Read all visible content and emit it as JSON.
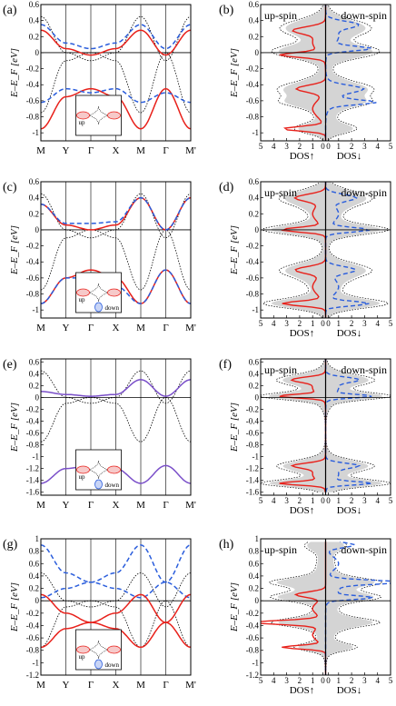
{
  "colors": {
    "up": "#e8211b",
    "down": "#2a5ddc",
    "overlap": "#7a4fc9",
    "reference": "#000000",
    "fill": "#d4d4d4",
    "inset_fill": "#f6c9c9",
    "inset_fill_down": "#c9d5f6"
  },
  "chart_data": [
    {
      "id": "a",
      "type": "line",
      "panel_label": "(a)",
      "ylabel": "E–E_F [eV]",
      "xlabel": "",
      "x_ticks": [
        "M",
        "Y",
        "Γ",
        "X",
        "M",
        "Γ",
        "M'"
      ],
      "ylim": [
        -1.1,
        0.6
      ],
      "y_ticks": [
        "0.6",
        "0.4",
        "0.2",
        "0",
        "-0.2",
        "-0.4",
        "-0.6",
        "-0.8",
        "-1"
      ],
      "inset_labels": [
        "up"
      ],
      "series": [
        {
          "spin": "up",
          "points": [
            [
              0,
              0.28
            ],
            [
              1,
              0.05
            ],
            [
              2,
              -0.03
            ],
            [
              3,
              0.05
            ],
            [
              4,
              0.28
            ],
            [
              5,
              -0.03
            ],
            [
              6,
              0.28
            ]
          ]
        },
        {
          "spin": "down",
          "points": [
            [
              0,
              0.35
            ],
            [
              1,
              0.12
            ],
            [
              2,
              0.05
            ],
            [
              3,
              0.12
            ],
            [
              4,
              0.35
            ],
            [
              5,
              0.05
            ],
            [
              6,
              0.35
            ]
          ]
        },
        {
          "spin": "up",
          "points": [
            [
              0,
              -0.95
            ],
            [
              1,
              -0.55
            ],
            [
              2,
              -0.45
            ],
            [
              3,
              -0.55
            ],
            [
              4,
              -0.95
            ],
            [
              5,
              -0.45
            ],
            [
              6,
              -0.95
            ]
          ]
        },
        {
          "spin": "down",
          "points": [
            [
              0,
              -0.62
            ],
            [
              1,
              -0.45
            ],
            [
              2,
              -0.5
            ],
            [
              3,
              -0.45
            ],
            [
              4,
              -0.62
            ],
            [
              5,
              -0.5
            ],
            [
              6,
              -0.62
            ]
          ]
        }
      ]
    },
    {
      "id": "b",
      "type": "area",
      "panel_label": "(b)",
      "ylabel": "E–E_F [eV]",
      "xlabel_left": "DOS↑",
      "xlabel_right": "DOS↓",
      "x_ticks": [
        "5",
        "4",
        "3",
        "2",
        "1",
        "0",
        "0",
        "1",
        "2",
        "3",
        "4",
        "5"
      ],
      "ylim": [
        -1.1,
        0.6
      ],
      "y_ticks": [
        "0.6",
        "0.4",
        "0.2",
        "0",
        "-0.2",
        "-0.4",
        "-0.6",
        "-0.8",
        "-1"
      ],
      "left_label": "up-spin",
      "right_label": "down-spin"
    },
    {
      "id": "c",
      "type": "line",
      "panel_label": "(c)",
      "ylabel": "E–E_F [eV]",
      "xlabel": "",
      "x_ticks": [
        "M",
        "Y",
        "Γ",
        "X",
        "M",
        "Γ",
        "M'"
      ],
      "ylim": [
        -1.1,
        0.6
      ],
      "y_ticks": [
        "0.6",
        "0.4",
        "0.2",
        "0",
        "-0.2",
        "-0.4",
        "-0.6",
        "-0.8",
        "-1"
      ],
      "inset_labels": [
        "up",
        "down"
      ],
      "series": [
        {
          "spin": "up",
          "points": [
            [
              0,
              0.32
            ],
            [
              1,
              0.06
            ],
            [
              2,
              0.0
            ],
            [
              3,
              0.06
            ],
            [
              4,
              0.4
            ],
            [
              5,
              0.0
            ],
            [
              6,
              0.4
            ]
          ]
        },
        {
          "spin": "down",
          "points": [
            [
              0,
              0.32
            ],
            [
              1,
              0.08
            ],
            [
              2,
              0.08
            ],
            [
              3,
              0.1
            ],
            [
              4,
              0.4
            ],
            [
              5,
              0.0
            ],
            [
              6,
              0.4
            ]
          ]
        },
        {
          "spin": "up",
          "points": [
            [
              0,
              -0.92
            ],
            [
              1,
              -0.6
            ],
            [
              2,
              -0.5
            ],
            [
              3,
              -0.6
            ],
            [
              4,
              -0.92
            ],
            [
              5,
              -0.5
            ],
            [
              6,
              -0.92
            ]
          ]
        },
        {
          "spin": "down",
          "points": [
            [
              0,
              -0.92
            ],
            [
              1,
              -0.6
            ],
            [
              2,
              -0.6
            ],
            [
              3,
              -0.7
            ],
            [
              4,
              -0.92
            ],
            [
              5,
              -0.5
            ],
            [
              6,
              -0.92
            ]
          ]
        }
      ]
    },
    {
      "id": "d",
      "type": "area",
      "panel_label": "(d)",
      "ylabel": "E–E_F [eV]",
      "xlabel_left": "DOS↑",
      "xlabel_right": "DOS↓",
      "x_ticks": [
        "5",
        "4",
        "3",
        "2",
        "1",
        "0",
        "0",
        "1",
        "2",
        "3",
        "4",
        "5"
      ],
      "ylim": [
        -1.1,
        0.6
      ],
      "y_ticks": [
        "0.6",
        "0.4",
        "0.2",
        "0",
        "-0.2",
        "-0.4",
        "-0.6",
        "-0.8",
        "-1"
      ],
      "left_label": "up-spin",
      "right_label": "down-spin"
    },
    {
      "id": "e",
      "type": "line",
      "panel_label": "(e)",
      "ylabel": "E–E_F [eV]",
      "xlabel": "",
      "x_ticks": [
        "M",
        "Y",
        "Γ",
        "X",
        "M",
        "Γ",
        "M'"
      ],
      "ylim": [
        -1.65,
        0.65
      ],
      "y_ticks": [
        "0.6",
        "0.4",
        "0.2",
        "0",
        "-0.2",
        "-0.4",
        "-0.6",
        "-0.8",
        "-1",
        "-1.2",
        "-1.4",
        "-1.6"
      ],
      "inset_labels": [
        "up",
        "down"
      ],
      "series": [
        {
          "spin": "overlap",
          "points": [
            [
              0,
              0.1
            ],
            [
              1,
              0.05
            ],
            [
              2,
              0.02
            ],
            [
              3,
              0.05
            ],
            [
              4,
              0.3
            ],
            [
              5,
              0.02
            ],
            [
              6,
              0.3
            ]
          ]
        },
        {
          "spin": "overlap",
          "points": [
            [
              0,
              -1.45
            ],
            [
              1,
              -1.2
            ],
            [
              2,
              -1.15
            ],
            [
              3,
              -1.2
            ],
            [
              4,
              -1.45
            ],
            [
              5,
              -1.15
            ],
            [
              6,
              -1.45
            ]
          ]
        }
      ]
    },
    {
      "id": "f",
      "type": "area",
      "panel_label": "(f)",
      "ylabel": "E–E_F [eV]",
      "xlabel_left": "DOS↑",
      "xlabel_right": "DOS↓",
      "x_ticks": [
        "5",
        "4",
        "3",
        "2",
        "1",
        "0",
        "0",
        "1",
        "2",
        "3",
        "4",
        "5"
      ],
      "ylim": [
        -1.65,
        0.65
      ],
      "y_ticks": [
        "0.6",
        "0.4",
        "0.2",
        "0",
        "-0.2",
        "-0.4",
        "-0.6",
        "-0.8",
        "-1",
        "-1.2",
        "-1.4",
        "-1.6"
      ],
      "left_label": "up-spin",
      "right_label": "down-spin"
    },
    {
      "id": "g",
      "type": "line",
      "panel_label": "(g)",
      "ylabel": "E–E_F [eV]",
      "xlabel": "",
      "x_ticks": [
        "M",
        "Y",
        "Γ",
        "X",
        "M",
        "Γ",
        "M'"
      ],
      "ylim": [
        -1.2,
        1.0
      ],
      "y_ticks": [
        "1",
        "0.8",
        "0.6",
        "0.4",
        "0.2",
        "0",
        "-0.2",
        "-0.4",
        "-0.6",
        "-0.8",
        "-1",
        "-1.2"
      ],
      "inset_labels": [
        "up",
        "down"
      ],
      "series": [
        {
          "spin": "down",
          "points": [
            [
              0,
              0.9
            ],
            [
              1,
              0.45
            ],
            [
              2,
              0.3
            ],
            [
              3,
              0.45
            ],
            [
              4,
              0.9
            ],
            [
              5,
              0.3
            ],
            [
              6,
              0.9
            ]
          ]
        },
        {
          "spin": "down",
          "points": [
            [
              0,
              0.05
            ],
            [
              1,
              0.2
            ],
            [
              2,
              0.3
            ],
            [
              3,
              0.2
            ],
            [
              4,
              0.05
            ],
            [
              5,
              0.3
            ],
            [
              6,
              0.05
            ]
          ]
        },
        {
          "spin": "up",
          "points": [
            [
              0,
              0.1
            ],
            [
              1,
              -0.2
            ],
            [
              2,
              -0.35
            ],
            [
              3,
              -0.2
            ],
            [
              4,
              0.1
            ],
            [
              5,
              -0.35
            ],
            [
              6,
              0.1
            ]
          ]
        },
        {
          "spin": "up",
          "points": [
            [
              0,
              -0.75
            ],
            [
              1,
              -0.45
            ],
            [
              2,
              -0.35
            ],
            [
              3,
              -0.45
            ],
            [
              4,
              -0.75
            ],
            [
              5,
              -0.35
            ],
            [
              6,
              -0.75
            ]
          ]
        }
      ]
    },
    {
      "id": "h",
      "type": "area",
      "panel_label": "(h)",
      "ylabel": "E–E_F [eV]",
      "xlabel_left": "DOS↑",
      "xlabel_right": "DOS↓",
      "x_ticks": [
        "5",
        "4",
        "3",
        "2",
        "1",
        "0",
        "0",
        "1",
        "2",
        "3",
        "4",
        "5"
      ],
      "ylim": [
        -1.2,
        1.0
      ],
      "y_ticks": [
        "1",
        "0.8",
        "0.6",
        "0.4",
        "0.2",
        "0",
        "-0.2",
        "-0.4",
        "-0.6",
        "-0.8",
        "-1",
        "-1.2"
      ],
      "left_label": "up-spin",
      "right_label": "down-spin"
    }
  ]
}
